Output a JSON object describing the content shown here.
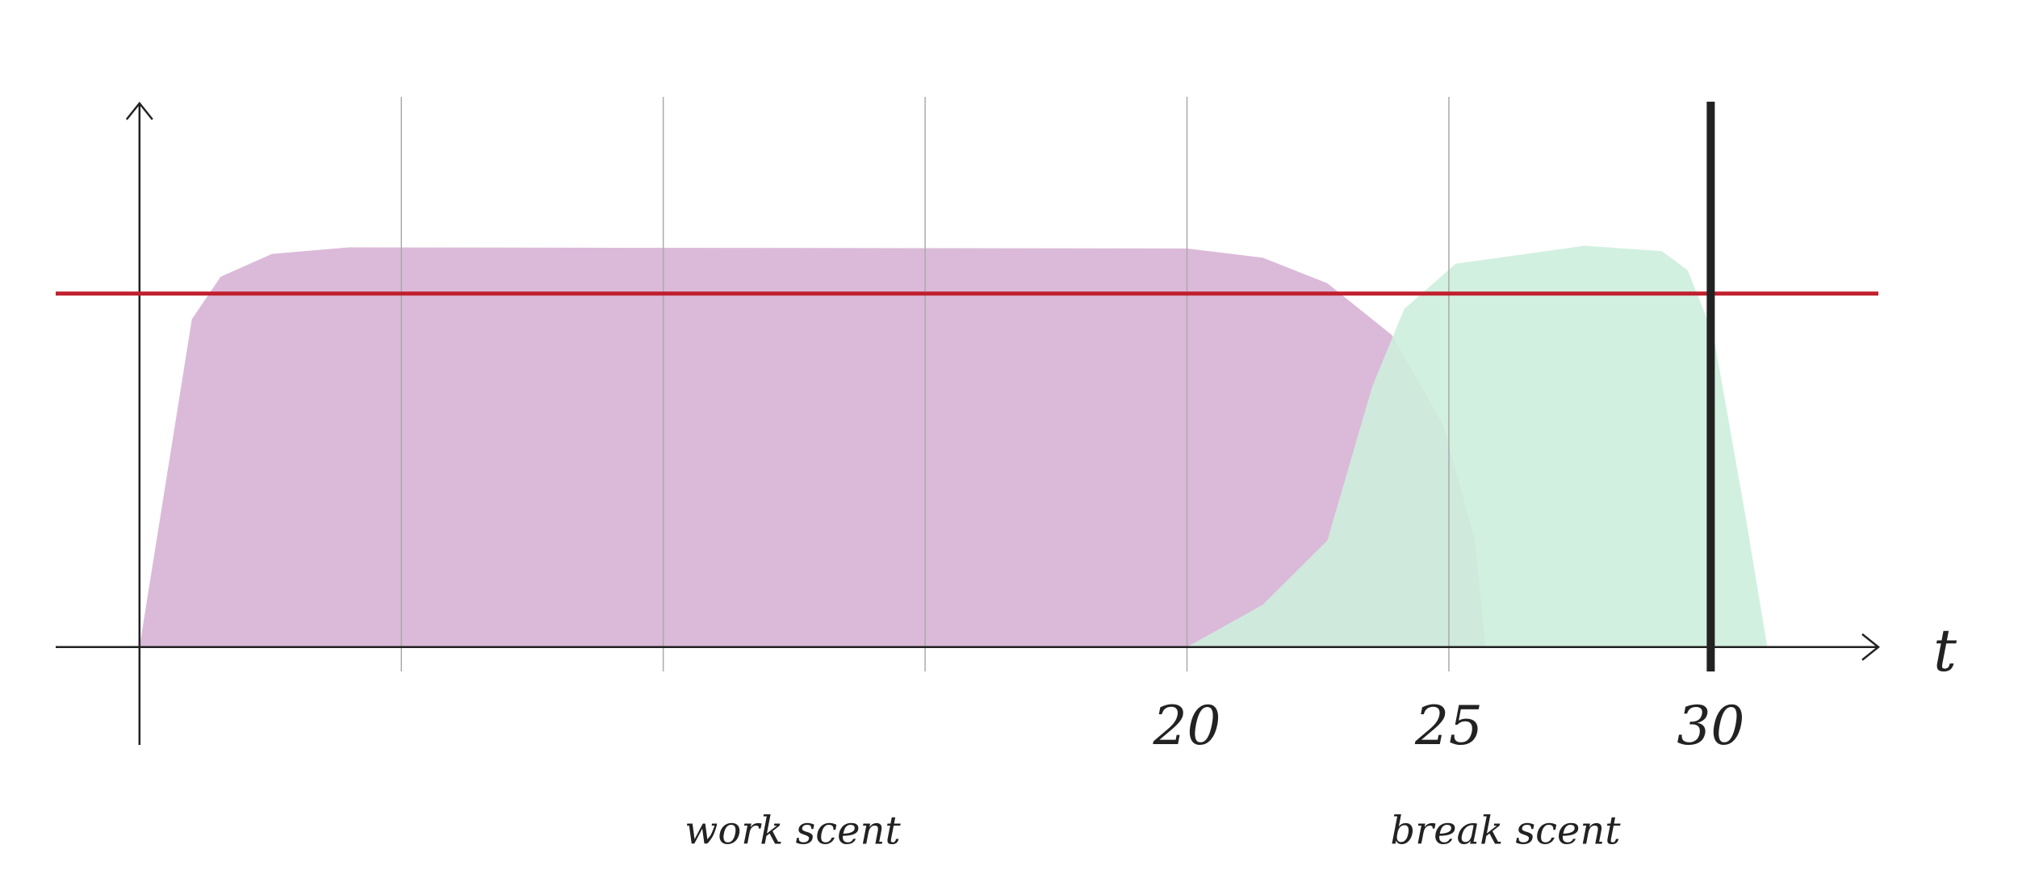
{
  "chart_data": {
    "type": "area",
    "x_label": "t",
    "xlim": [
      -1.6,
      33.2
    ],
    "ylim": [
      -18,
      100
    ],
    "xticks": [
      20,
      25,
      30
    ],
    "xtick_colors": [
      "#222222",
      "#7fcfa9",
      "#222222"
    ],
    "xgrid": [
      5,
      10,
      15,
      20,
      25
    ],
    "marker_x": 30,
    "threshold": 65,
    "threshold_color": "#c0202e",
    "series": [
      {
        "name": "work scent",
        "color": "#dbbad9",
        "x": [
          0,
          1.0,
          1.55,
          2.53,
          4.0,
          20,
          21.45,
          22.68,
          23.91,
          24.89,
          25.5,
          25.7
        ],
        "values": [
          0,
          60.3,
          68.1,
          72.3,
          73.5,
          73.3,
          71.6,
          66.9,
          57.4,
          40.9,
          19.6,
          0
        ]
      },
      {
        "name": "break scent",
        "color": "#cdeedd",
        "x": [
          20,
          21.45,
          22.68,
          23.54,
          24.15,
          25.13,
          27.59,
          29.07,
          29.56,
          30.05,
          30.66,
          31.08
        ],
        "values": [
          0,
          7.8,
          19.6,
          48.0,
          62.2,
          70.5,
          73.8,
          72.8,
          69.3,
          57.4,
          24.3,
          0
        ]
      }
    ]
  }
}
